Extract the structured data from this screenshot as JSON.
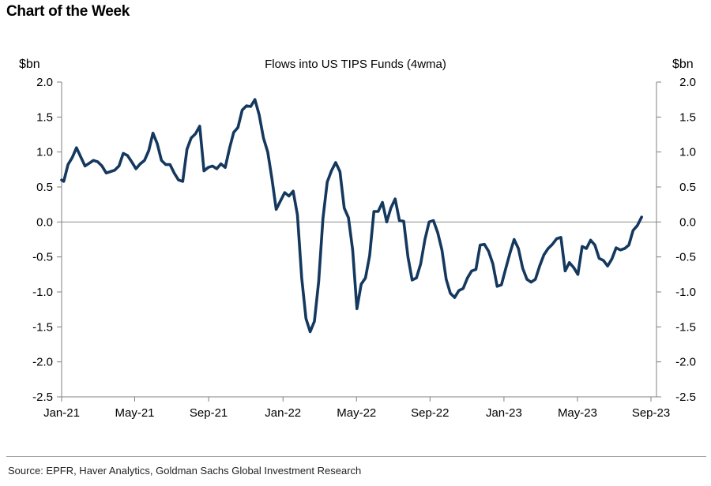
{
  "header": {
    "title": "Chart of the Week"
  },
  "footer": {
    "source": "Source: EPFR, Haver Analytics, Goldman Sachs Global Investment Research"
  },
  "colors": {
    "line": "#14385e",
    "axis": "#808080",
    "zero": "#8c8c8c"
  },
  "chart_data": {
    "type": "line",
    "title": "Flows into US TIPS Funds (4wma)",
    "ylabel_left": "$bn",
    "ylabel_right": "$bn",
    "xlabel": "",
    "grid": false,
    "ylim": [
      -2.5,
      2.0
    ],
    "yticks": [
      "2.0",
      "1.5",
      "1.0",
      "0.5",
      "0.0",
      "-0.5",
      "-1.0",
      "-1.5",
      "-2.0",
      "-2.5"
    ],
    "ytick_values": [
      2.0,
      1.5,
      1.0,
      0.5,
      0.0,
      -0.5,
      -1.0,
      -1.5,
      -2.0,
      -2.5
    ],
    "xticks": [
      "Jan-21",
      "May-21",
      "Sep-21",
      "Jan-22",
      "May-22",
      "Sep-22",
      "Jan-23",
      "May-23",
      "Sep-23"
    ],
    "x_unit": "weeks since start of Jan-21 (approx.)",
    "xlim": [
      0,
      140
    ],
    "xtick_positions": [
      0,
      17.2,
      34.6,
      52.1,
      69.4,
      86.7,
      104.1,
      121.4,
      138.7
    ],
    "series": [
      {
        "name": "Flows into US TIPS Funds (4wma)",
        "x": [
          0,
          0.5,
          1.5,
          2.5,
          3.5,
          4.5,
          5.5,
          6.5,
          7.5,
          8.5,
          9.5,
          10.5,
          11.5,
          12.5,
          13.5,
          14.5,
          15.5,
          16.5,
          17.5,
          18.5,
          19.5,
          20.5,
          21.5,
          22.5,
          23.5,
          24.5,
          25.5,
          26.5,
          27.5,
          28.5,
          29.5,
          30.5,
          31.5,
          32.5,
          33.5,
          34.5,
          35.5,
          36.5,
          37.5,
          38.5,
          39.5,
          40.5,
          41.5,
          42.5,
          43.5,
          44.5,
          45.5,
          46.5,
          47.5,
          48.5,
          49.5,
          50.5,
          51.5,
          52.5,
          53.5,
          54.5,
          55.5,
          56.5,
          57.5,
          58.5,
          59.5,
          60.5,
          61.5,
          62.5,
          63.5,
          64.5,
          65.5,
          66.5,
          67.5,
          68.5,
          69.5,
          70.5,
          71.5,
          72.5,
          73.5,
          74.5,
          75.5,
          76.5,
          77.5,
          78.5,
          79.5,
          80.5,
          81.5,
          82.5,
          83.5,
          84.5,
          85.5,
          86.5,
          87.5,
          88.5,
          89.5,
          90.5,
          91.5,
          92.5,
          93.5,
          94.5,
          95.5,
          96.5,
          97.5,
          98.5,
          99.5,
          100.5,
          101.5,
          102.5,
          103.5,
          104.5,
          105.5,
          106.5,
          107.5,
          108.5,
          109.5,
          110.5,
          111.5,
          112.5,
          113.5,
          114.5,
          115.5,
          116.5,
          117.5,
          118.5,
          119.5,
          120.5,
          121.5,
          122.5,
          123.5,
          124.5,
          125.5,
          126.5,
          127.5,
          128.5,
          129.5,
          130.5,
          131.5,
          132.5,
          133.5,
          134.5,
          135.5,
          136.5
        ],
        "values": [
          0.6,
          0.58,
          0.82,
          0.92,
          1.06,
          0.93,
          0.8,
          0.84,
          0.88,
          0.86,
          0.8,
          0.7,
          0.72,
          0.74,
          0.8,
          0.98,
          0.95,
          0.86,
          0.76,
          0.83,
          0.88,
          1.02,
          1.27,
          1.12,
          0.88,
          0.82,
          0.82,
          0.7,
          0.6,
          0.58,
          1.04,
          1.2,
          1.26,
          1.37,
          0.73,
          0.78,
          0.8,
          0.76,
          0.83,
          0.78,
          1.05,
          1.28,
          1.35,
          1.6,
          1.66,
          1.65,
          1.75,
          1.53,
          1.2,
          1.0,
          0.62,
          0.18,
          0.3,
          0.42,
          0.37,
          0.44,
          0.1,
          -0.8,
          -1.38,
          -1.57,
          -1.42,
          -0.85,
          0.05,
          0.57,
          0.73,
          0.85,
          0.72,
          0.2,
          0.06,
          -0.4,
          -1.24,
          -0.89,
          -0.8,
          -0.48,
          0.15,
          0.15,
          0.28,
          0.0,
          0.2,
          0.33,
          0.02,
          0.01,
          -0.5,
          -0.83,
          -0.8,
          -0.6,
          -0.25,
          0.0,
          0.02,
          -0.15,
          -0.4,
          -0.82,
          -1.02,
          -1.08,
          -0.98,
          -0.95,
          -0.8,
          -0.7,
          -0.68,
          -0.33,
          -0.32,
          -0.42,
          -0.6,
          -0.92,
          -0.9,
          -0.67,
          -0.45,
          -0.25,
          -0.38,
          -0.66,
          -0.82,
          -0.86,
          -0.82,
          -0.63,
          -0.47,
          -0.38,
          -0.32,
          -0.24,
          -0.22,
          -0.7,
          -0.58,
          -0.65,
          -0.75,
          -0.35,
          -0.38,
          -0.26,
          -0.33,
          -0.52,
          -0.55,
          -0.63,
          -0.53,
          -0.37,
          -0.4,
          -0.38,
          -0.33,
          -0.12,
          -0.05,
          0.07
        ]
      }
    ]
  }
}
